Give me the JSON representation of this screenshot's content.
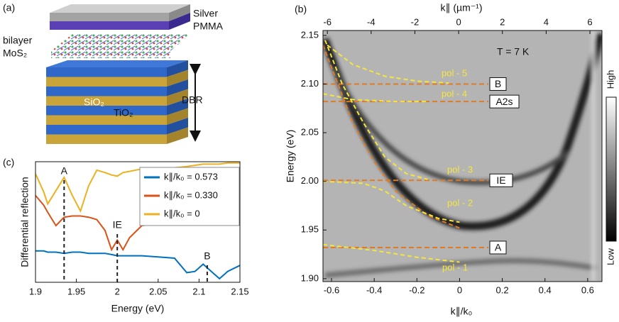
{
  "panel_a": {
    "label": "(a)",
    "silver": "Silver",
    "pmma": "PMMA",
    "bilayer": "bilayer",
    "mos2": "MoS₂",
    "sio2": "SiO₂",
    "tio2": "TiO₂",
    "dbr": "DBR"
  },
  "chart_data": [
    {
      "type": "spectrum-map",
      "label": "(b)",
      "xlabel": "k∥/k₀",
      "x2label": "k∥ (µm⁻¹)",
      "ylabel": "Energy (eV)",
      "annotation": "T = 7 K",
      "colorbar": {
        "high": "High",
        "low": "Low"
      },
      "xlim": [
        -0.64,
        0.667
      ],
      "xticks": [
        -0.6,
        -0.4,
        -0.2,
        0,
        0.2,
        0.4,
        0.6
      ],
      "x2lim": [
        -6.2,
        6.55
      ],
      "x2ticks": [
        -6,
        -4,
        -2,
        0,
        2,
        4,
        6
      ],
      "ylim": [
        1.897,
        2.155
      ],
      "yticks": [
        {
          "value": 1.9,
          "label": "1.90"
        },
        1.95,
        {
          "value": 2,
          "label": "2.00"
        },
        2.05,
        {
          "value": 2.1,
          "label": "2.10"
        },
        2.15
      ],
      "levels": [
        {
          "name": "B",
          "value": 2.1
        },
        {
          "name": "A2s",
          "value": 2.082
        },
        {
          "name": "IE",
          "value": 2.001
        },
        {
          "name": "A",
          "value": 1.932
        }
      ],
      "level_color": "#e07b24",
      "cavity": {
        "color": "#e07b24",
        "x": [
          -0.64,
          -0.5,
          -0.4,
          -0.3,
          -0.15,
          0
        ],
        "values": [
          2.14,
          2.06,
          2.02,
          1.99,
          1.965,
          1.952
        ]
      },
      "curves": [
        {
          "name": "pol - 5",
          "color": "#f5e63c",
          "x": [
            -0.62,
            -0.5,
            -0.35,
            -0.2,
            -0.05
          ],
          "values": [
            2.14,
            2.12,
            2.108,
            2.103,
            2.101
          ]
        },
        {
          "name": "pol - 4",
          "color": "#f5e63c",
          "x": [
            -0.64,
            -0.5,
            -0.3,
            -0.15
          ],
          "values": [
            2.09,
            2.084,
            2.082,
            2.082
          ]
        },
        {
          "name": "pol - 3",
          "color": "#f5e63c",
          "x": [
            -0.63,
            -0.55,
            -0.45,
            -0.35,
            -0.25,
            -0.15
          ],
          "values": [
            2.145,
            2.1,
            2.06,
            2.025,
            2.008,
            2.002
          ]
        },
        {
          "name": "pol - 2",
          "color": "#f5e63c",
          "x": [
            -0.64,
            -0.45,
            -0.35,
            -0.25,
            -0.1,
            0
          ],
          "values": [
            2.0,
            1.998,
            1.99,
            1.975,
            1.962,
            1.958
          ]
        },
        {
          "name": "pol - 1",
          "color": "#f5e63c",
          "x": [
            -0.64,
            -0.4,
            -0.2,
            0
          ],
          "values": [
            1.935,
            1.929,
            1.922,
            1.917
          ]
        }
      ]
    },
    {
      "type": "line",
      "label": "(c)",
      "xlabel": "Energy (eV)",
      "ylabel": "Differential reflection",
      "xlim": [
        1.9,
        2.15
      ],
      "xticks": [
        1.9,
        1.95,
        2,
        2.05,
        2.1,
        2.15
      ],
      "ylim": [
        0,
        1
      ],
      "legend": "upper right",
      "x": [
        1.9,
        1.91,
        1.915,
        1.925,
        1.935,
        1.945,
        1.955,
        1.965,
        1.975,
        1.985,
        1.993,
        2.0,
        2.007,
        2.015,
        2.03,
        2.05,
        2.07,
        2.085,
        2.095,
        2.105,
        2.115,
        2.125,
        2.135,
        2.15
      ],
      "series": [
        {
          "name": "k∥/k₀ = 0.573",
          "color": "#0072bd",
          "values": [
            0.26,
            0.26,
            0.25,
            0.25,
            0.24,
            0.25,
            0.25,
            0.24,
            0.24,
            0.24,
            0.23,
            0.22,
            0.22,
            0.22,
            0.22,
            0.21,
            0.2,
            0.08,
            0.09,
            0.15,
            0.09,
            0.03,
            0.09,
            0.14
          ]
        },
        {
          "name": "k∥/k₀ = 0.330",
          "color": "#d95319",
          "values": [
            0.72,
            0.64,
            0.58,
            0.47,
            0.54,
            0.55,
            0.55,
            0.54,
            0.52,
            0.43,
            0.27,
            0.35,
            0.27,
            0.37,
            0.47,
            0.49,
            0.5,
            0.51,
            0.51,
            0.51,
            0.51,
            0.51,
            0.51,
            0.51
          ]
        },
        {
          "name": "k∥/k₀ = 0",
          "color": "#edb120",
          "values": [
            0.9,
            0.75,
            0.65,
            0.76,
            0.87,
            0.72,
            0.59,
            0.8,
            0.93,
            0.91,
            0.89,
            0.88,
            0.91,
            0.92,
            0.94,
            0.94,
            0.95,
            0.96,
            0.97,
            0.98,
            0.98,
            0.98,
            0.99,
            0.99
          ]
        }
      ],
      "annotations": [
        {
          "label": "A",
          "x": 1.935
        },
        {
          "label": "IE",
          "x": 2.0
        },
        {
          "label": "B",
          "x": 2.11
        }
      ]
    }
  ]
}
